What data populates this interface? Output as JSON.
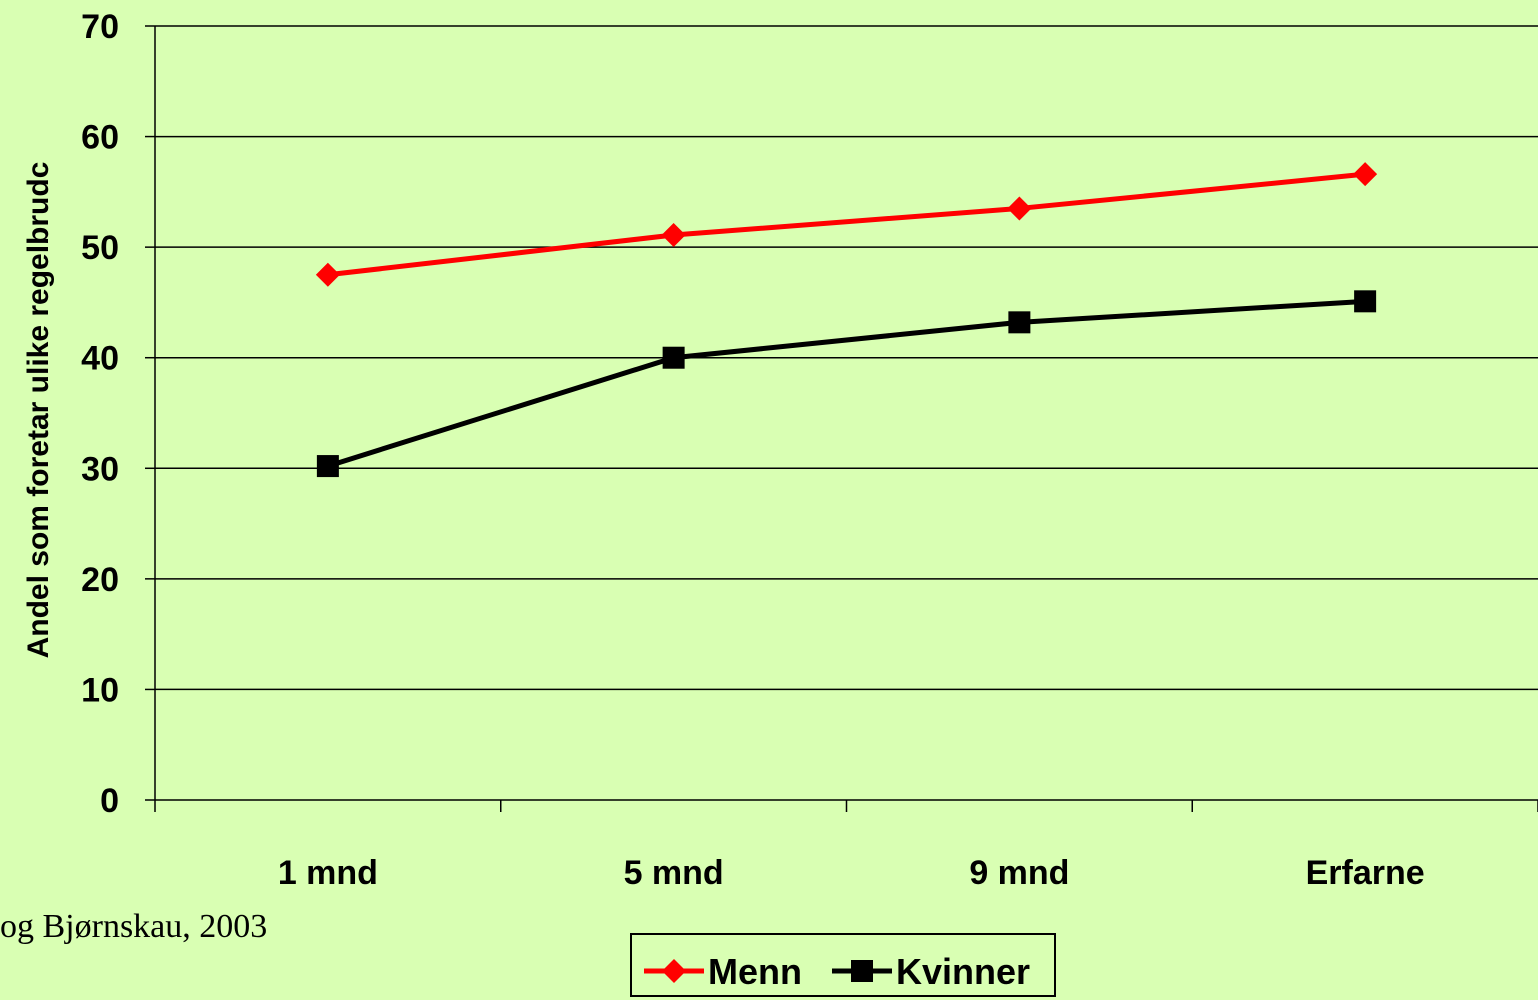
{
  "chart_data": {
    "type": "line",
    "categories": [
      "1 mnd",
      "5 mnd",
      "9 mnd",
      "Erfarne"
    ],
    "series": [
      {
        "name": "Menn",
        "values": [
          47.5,
          51.1,
          53.5,
          56.6
        ],
        "color": "#ff0000",
        "marker": "diamond"
      },
      {
        "name": "Kvinner",
        "values": [
          30.2,
          40.0,
          43.2,
          45.1
        ],
        "color": "#000000",
        "marker": "square"
      }
    ],
    "ylabel": "Andel som foretar ulike regelbrudc",
    "ylim": [
      0,
      70
    ],
    "yticks": [
      0,
      10,
      20,
      30,
      40,
      50,
      60,
      70
    ],
    "grid": true,
    "legend_position": "bottom"
  },
  "source_note": "og Bjørnskau, 2003"
}
